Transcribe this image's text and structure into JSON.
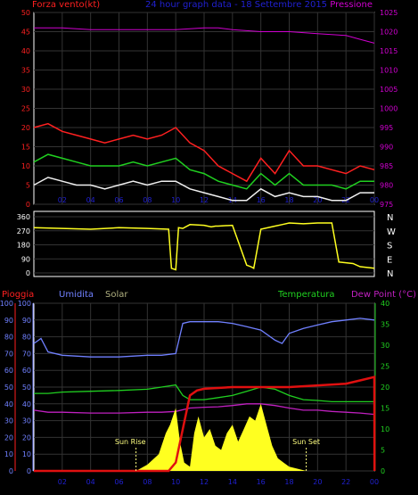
{
  "title": "24 hour graph data - 18 Settembre 2015",
  "chart_data": [
    {
      "type": "line",
      "left_label": "Forza vento(kt)",
      "right_label": "Pressione",
      "left_ylim": [
        0,
        50
      ],
      "left_ticks": [
        0,
        5,
        10,
        15,
        20,
        25,
        30,
        35,
        40,
        45,
        50
      ],
      "right_ylim": [
        975,
        1025
      ],
      "right_ticks": [
        975,
        980,
        985,
        990,
        995,
        1000,
        1005,
        1010,
        1015,
        1020,
        1025
      ],
      "x_ticks": [
        "02",
        "04",
        "06",
        "08",
        "10",
        "12",
        "14",
        "16",
        "18",
        "20",
        "22",
        "00"
      ],
      "series": [
        {
          "color": "#ff2020",
          "axis": "left",
          "x": [
            0,
            1,
            2,
            3,
            4,
            5,
            6,
            7,
            8,
            9,
            10,
            11,
            12,
            13,
            14,
            15,
            16,
            17,
            18,
            19,
            20,
            21,
            22,
            23,
            24
          ],
          "values": [
            20,
            21,
            19,
            18,
            17,
            16,
            17,
            18,
            17,
            18,
            20,
            16,
            14,
            10,
            8,
            6,
            12,
            8,
            14,
            10,
            10,
            9,
            8,
            10,
            9
          ]
        },
        {
          "color": "#20d020",
          "axis": "left",
          "x": [
            0,
            1,
            2,
            3,
            4,
            5,
            6,
            7,
            8,
            9,
            10,
            11,
            12,
            13,
            14,
            15,
            16,
            17,
            18,
            19,
            20,
            21,
            22,
            23,
            24
          ],
          "values": [
            11,
            13,
            12,
            11,
            10,
            10,
            10,
            11,
            10,
            11,
            12,
            9,
            8,
            6,
            5,
            4,
            8,
            5,
            8,
            5,
            5,
            5,
            4,
            6,
            6
          ]
        },
        {
          "color": "#f0f0f0",
          "axis": "left",
          "x": [
            0,
            1,
            2,
            3,
            4,
            5,
            6,
            7,
            8,
            9,
            10,
            11,
            12,
            13,
            14,
            15,
            16,
            17,
            18,
            19,
            20,
            21,
            22,
            23,
            24
          ],
          "values": [
            5,
            7,
            6,
            5,
            5,
            4,
            5,
            6,
            5,
            6,
            6,
            4,
            3,
            2,
            1,
            1,
            4,
            2,
            3,
            2,
            2,
            1,
            1,
            3,
            3
          ]
        },
        {
          "color": "#d000d0",
          "axis": "right",
          "x": [
            0,
            2,
            4,
            6,
            8,
            10,
            12,
            13,
            14,
            16,
            18,
            20,
            22,
            23,
            24
          ],
          "values": [
            1021,
            1021,
            1020.5,
            1020.5,
            1020.5,
            1020.5,
            1021,
            1021,
            1020.5,
            1020,
            1020,
            1019.5,
            1019,
            1018,
            1017
          ]
        }
      ]
    },
    {
      "type": "line",
      "right_axis_labels": [
        "N",
        "W",
        "S",
        "E",
        "N"
      ],
      "ylim": [
        0,
        360
      ],
      "y_ticks": [
        0,
        90,
        180,
        270,
        360
      ],
      "x_ticks": [
        "02",
        "04",
        "06",
        "08",
        "10",
        "12",
        "14",
        "16",
        "18",
        "20",
        "22",
        "00"
      ],
      "series": [
        {
          "color": "#ffff20",
          "x": [
            0,
            2,
            4,
            6,
            8,
            9.5,
            9.7,
            10,
            10.2,
            10.5,
            11,
            12,
            12.5,
            12.8,
            13,
            14,
            15,
            15.3,
            15.5,
            16,
            17,
            17.5,
            18,
            19,
            20,
            21,
            21.5,
            22,
            22.5,
            23,
            23.5,
            24
          ],
          "values": [
            290,
            285,
            280,
            290,
            285,
            280,
            30,
            20,
            290,
            285,
            310,
            305,
            295,
            300,
            300,
            305,
            50,
            40,
            30,
            280,
            300,
            310,
            320,
            315,
            320,
            320,
            70,
            65,
            60,
            40,
            35,
            30
          ]
        }
      ]
    },
    {
      "type": "line",
      "left_labels": [
        "Pioggia",
        "Umidita",
        "Solar"
      ],
      "right_labels": [
        "Temperatura",
        "Dew Point (°C)"
      ],
      "rain_ylim": [
        0,
        100
      ],
      "rain_ticks": [
        0,
        10,
        20,
        30,
        40,
        50,
        60,
        70,
        80,
        90,
        100
      ],
      "hum_ylim": [
        0,
        100
      ],
      "hum_ticks": [
        0,
        10,
        20,
        30,
        40,
        50,
        60,
        70,
        80,
        90,
        100
      ],
      "temp_ylim": [
        0,
        40
      ],
      "temp_ticks": [
        0,
        5,
        10,
        15,
        20,
        25,
        30,
        35,
        40
      ],
      "x_ticks": [
        "02",
        "04",
        "06",
        "08",
        "10",
        "12",
        "14",
        "16",
        "18",
        "20",
        "22",
        "00"
      ],
      "annotations": [
        "Sun Rise",
        "Sun Set"
      ],
      "series": [
        {
          "name": "Umidita",
          "color": "#7080ff",
          "axis": "hum",
          "x": [
            0,
            0.5,
            1,
            2,
            4,
            6,
            8,
            9,
            10,
            10.5,
            11,
            12,
            13,
            14,
            15,
            16,
            17,
            17.5,
            18,
            19,
            20,
            21,
            22,
            23,
            24
          ],
          "values": [
            76,
            79,
            71,
            69,
            68,
            68,
            69,
            69,
            70,
            88,
            89,
            89,
            89,
            88,
            86,
            84,
            78,
            76,
            82,
            85,
            87,
            89,
            90,
            91,
            90
          ]
        },
        {
          "name": "Temperatura",
          "color": "#20d020",
          "axis": "temp",
          "x": [
            0,
            1,
            2,
            4,
            6,
            8,
            9,
            10,
            10.5,
            11,
            12,
            13,
            14,
            15,
            16,
            17,
            18,
            19,
            20,
            21,
            22,
            24
          ],
          "values": [
            18.5,
            18.5,
            18.8,
            19,
            19.2,
            19.5,
            20,
            20.5,
            18,
            17,
            17,
            17.5,
            18,
            19,
            20,
            19.5,
            18,
            17,
            16.8,
            16.5,
            16.5,
            16.5
          ]
        },
        {
          "name": "Dew Point",
          "color": "#c020c0",
          "axis": "temp",
          "x": [
            0,
            1,
            2,
            4,
            6,
            8,
            9,
            10,
            11,
            12,
            13,
            14,
            15,
            16,
            17,
            18,
            19,
            20,
            21,
            22,
            23,
            24
          ],
          "values": [
            14.5,
            14,
            14,
            13.8,
            13.8,
            14,
            14,
            14.2,
            15,
            15.2,
            15.3,
            15.6,
            16,
            16,
            15.6,
            15,
            14.5,
            14.5,
            14.2,
            14,
            13.8,
            13.5
          ]
        },
        {
          "name": "Solar",
          "color": "#ffff20",
          "axis": "temp",
          "x": [
            7.2,
            8,
            8.8,
            9.3,
            9.6,
            10,
            10.3,
            10.6,
            11,
            11.3,
            11.6,
            12,
            12.4,
            12.8,
            13.2,
            13.6,
            14,
            14.4,
            14.8,
            15.2,
            15.6,
            16,
            16.4,
            16.8,
            17.2,
            17.6,
            18,
            19.2
          ],
          "values": [
            0,
            1.5,
            4,
            9,
            11,
            15,
            7,
            2,
            1,
            9,
            13,
            8,
            10,
            6,
            5,
            9,
            11,
            7,
            10,
            13,
            12,
            16,
            11,
            6,
            3,
            2,
            1,
            0
          ]
        },
        {
          "name": "Pioggia",
          "color": "#e01010",
          "axis": "rain",
          "x": [
            0,
            9.5,
            10,
            10.5,
            11,
            11.5,
            12,
            14,
            16,
            18,
            20,
            22,
            23,
            24,
            24.01
          ],
          "values": [
            0,
            0,
            5,
            25,
            45,
            48,
            49,
            50,
            50,
            50,
            51,
            52,
            54,
            56,
            0
          ]
        }
      ]
    }
  ]
}
